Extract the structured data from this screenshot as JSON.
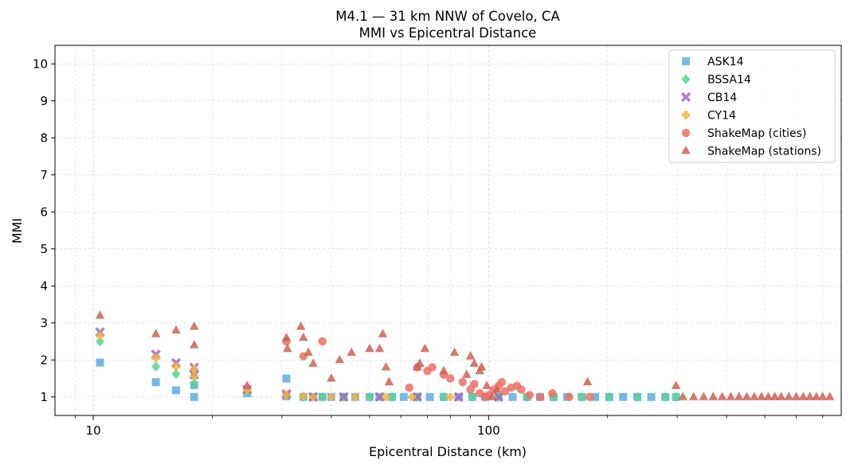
{
  "chart_data": {
    "type": "scatter",
    "title": "M4.1 — 31 km NNW of Covelo, CA",
    "subtitle": "MMI vs Epicentral Distance",
    "xlabel": "Epicentral Distance (km)",
    "ylabel": "MMI",
    "x_scale": "log",
    "xlim": [
      8,
      780
    ],
    "ylim": [
      0.5,
      10.5
    ],
    "x_ticks": [
      10,
      100
    ],
    "x_tick_labels": [
      "10",
      "100"
    ],
    "y_ticks": [
      1,
      2,
      3,
      4,
      5,
      6,
      7,
      8,
      9,
      10
    ],
    "y_tick_labels": [
      "1",
      "2",
      "3",
      "4",
      "5",
      "6",
      "7",
      "8",
      "9",
      "10"
    ],
    "grid": true,
    "legend_position": "top-right",
    "series": [
      {
        "name": "ASK14",
        "marker": "square",
        "color": "#5dade2",
        "points": [
          [
            10.4,
            1.93
          ],
          [
            14.4,
            1.4
          ],
          [
            16.2,
            1.18
          ],
          [
            18.0,
            1.32
          ],
          [
            18.0,
            1.0
          ],
          [
            24.5,
            1.1
          ],
          [
            30.8,
            1.5
          ],
          [
            30.8,
            1.02
          ],
          [
            34,
            1.0
          ],
          [
            36,
            1.0
          ],
          [
            38,
            1.0
          ],
          [
            40,
            1.0
          ],
          [
            43,
            1.0
          ],
          [
            46,
            1.0
          ],
          [
            50,
            1.0
          ],
          [
            53,
            1.0
          ],
          [
            57,
            1.0
          ],
          [
            61,
            1.0
          ],
          [
            66,
            1.0
          ],
          [
            71,
            1.0
          ],
          [
            77,
            1.0
          ],
          [
            84,
            1.0
          ],
          [
            91,
            1.0
          ],
          [
            98,
            1.0
          ],
          [
            106,
            1.0
          ],
          [
            115,
            1.0
          ],
          [
            125,
            1.0
          ],
          [
            135,
            1.0
          ],
          [
            146,
            1.0
          ],
          [
            158,
            1.0
          ],
          [
            172,
            1.0
          ],
          [
            186,
            1.0
          ],
          [
            202,
            1.0
          ],
          [
            219,
            1.0
          ],
          [
            238,
            1.0
          ],
          [
            258,
            1.0
          ],
          [
            280,
            1.0
          ],
          [
            298,
            1.0
          ]
        ]
      },
      {
        "name": "BSSA14",
        "marker": "diamond",
        "color": "#58d68d",
        "points": [
          [
            10.4,
            2.5
          ],
          [
            14.4,
            1.82
          ],
          [
            16.2,
            1.62
          ],
          [
            18.0,
            1.57
          ],
          [
            18.0,
            1.35
          ],
          [
            24.5,
            1.15
          ],
          [
            30.8,
            1.05
          ],
          [
            34,
            1.0
          ],
          [
            38,
            1.0
          ],
          [
            43,
            1.0
          ],
          [
            50,
            1.0
          ],
          [
            57,
            1.0
          ],
          [
            66,
            1.0
          ],
          [
            77,
            1.0
          ],
          [
            91,
            1.0
          ],
          [
            106,
            1.0
          ],
          [
            125,
            1.0
          ],
          [
            146,
            1.0
          ],
          [
            172,
            1.0
          ],
          [
            202,
            1.0
          ],
          [
            238,
            1.0
          ],
          [
            280,
            1.0
          ],
          [
            298,
            1.0
          ]
        ]
      },
      {
        "name": "CB14",
        "marker": "x",
        "color": "#a569bd",
        "points": [
          [
            10.4,
            2.75
          ],
          [
            14.4,
            2.15
          ],
          [
            16.2,
            1.92
          ],
          [
            18.0,
            1.8
          ],
          [
            18.0,
            1.6
          ],
          [
            24.5,
            1.2
          ],
          [
            30.8,
            1.08
          ],
          [
            36,
            1.0
          ],
          [
            43,
            1.0
          ],
          [
            53,
            1.0
          ],
          [
            66,
            1.0
          ],
          [
            84,
            1.0
          ],
          [
            106,
            1.0
          ]
        ]
      },
      {
        "name": "CY14",
        "marker": "plus",
        "color": "#f5b041",
        "points": [
          [
            10.4,
            2.65
          ],
          [
            14.4,
            2.05
          ],
          [
            16.2,
            1.82
          ],
          [
            18.0,
            1.75
          ],
          [
            18.0,
            1.55
          ],
          [
            24.5,
            1.18
          ],
          [
            30.8,
            1.05
          ],
          [
            34,
            1.02
          ],
          [
            36,
            1.0
          ],
          [
            40,
            1.0
          ],
          [
            46,
            1.0
          ],
          [
            55,
            1.0
          ],
          [
            64,
            1.0
          ],
          [
            80,
            1.0
          ]
        ]
      },
      {
        "name": "ShakeMap (cities)",
        "marker": "circle",
        "color": "#ec7063",
        "points": [
          [
            30.8,
            2.5
          ],
          [
            34,
            2.1
          ],
          [
            38,
            2.5
          ],
          [
            63,
            1.25
          ],
          [
            66,
            1.8
          ],
          [
            70,
            1.7
          ],
          [
            72,
            1.8
          ],
          [
            77,
            1.6
          ],
          [
            80,
            1.5
          ],
          [
            86,
            1.4
          ],
          [
            90,
            1.2
          ],
          [
            92,
            1.35
          ],
          [
            95,
            1.1
          ],
          [
            98,
            1.0
          ],
          [
            100,
            1.05
          ],
          [
            103,
            1.2
          ],
          [
            106,
            1.3
          ],
          [
            108,
            1.4
          ],
          [
            110,
            1.15
          ],
          [
            114,
            1.25
          ],
          [
            118,
            1.3
          ],
          [
            121,
            1.2
          ],
          [
            127,
            1.05
          ],
          [
            135,
            1.0
          ],
          [
            145,
            1.1
          ],
          [
            160,
            1.0
          ],
          [
            180,
            1.0
          ]
        ]
      },
      {
        "name": "ShakeMap (stations)",
        "marker": "triangle",
        "color": "#cd6155",
        "points": [
          [
            10.4,
            3.2
          ],
          [
            14.4,
            2.7
          ],
          [
            16.2,
            2.8
          ],
          [
            18.0,
            2.9
          ],
          [
            18.0,
            2.4
          ],
          [
            24.5,
            1.3
          ],
          [
            30.8,
            2.6
          ],
          [
            31,
            2.3
          ],
          [
            33.5,
            2.9
          ],
          [
            34,
            2.6
          ],
          [
            35,
            2.2
          ],
          [
            36,
            1.9
          ],
          [
            40,
            1.5
          ],
          [
            42,
            2.0
          ],
          [
            45,
            2.2
          ],
          [
            50,
            2.3
          ],
          [
            53,
            2.3
          ],
          [
            54,
            2.7
          ],
          [
            55,
            1.8
          ],
          [
            56,
            1.4
          ],
          [
            66,
            1.8
          ],
          [
            67,
            1.9
          ],
          [
            69,
            2.3
          ],
          [
            77,
            1.7
          ],
          [
            82,
            2.2
          ],
          [
            88,
            1.6
          ],
          [
            90,
            2.1
          ],
          [
            92,
            1.9
          ],
          [
            95,
            1.7
          ],
          [
            96,
            1.8
          ],
          [
            99,
            1.3
          ],
          [
            102,
            1.0
          ],
          [
            105,
            1.2
          ],
          [
            178,
            1.4
          ],
          [
            298,
            1.3
          ],
          [
            310,
            1.0
          ],
          [
            330,
            1.0
          ],
          [
            350,
            1.0
          ],
          [
            370,
            1.0
          ],
          [
            390,
            1.0
          ],
          [
            410,
            1.0
          ],
          [
            430,
            1.0
          ],
          [
            450,
            1.0
          ],
          [
            470,
            1.0
          ],
          [
            490,
            1.0
          ],
          [
            510,
            1.0
          ],
          [
            530,
            1.0
          ],
          [
            550,
            1.0
          ],
          [
            575,
            1.0
          ],
          [
            600,
            1.0
          ],
          [
            625,
            1.0
          ],
          [
            650,
            1.0
          ],
          [
            675,
            1.0
          ],
          [
            700,
            1.0
          ],
          [
            730,
            1.0
          ]
        ]
      }
    ]
  }
}
